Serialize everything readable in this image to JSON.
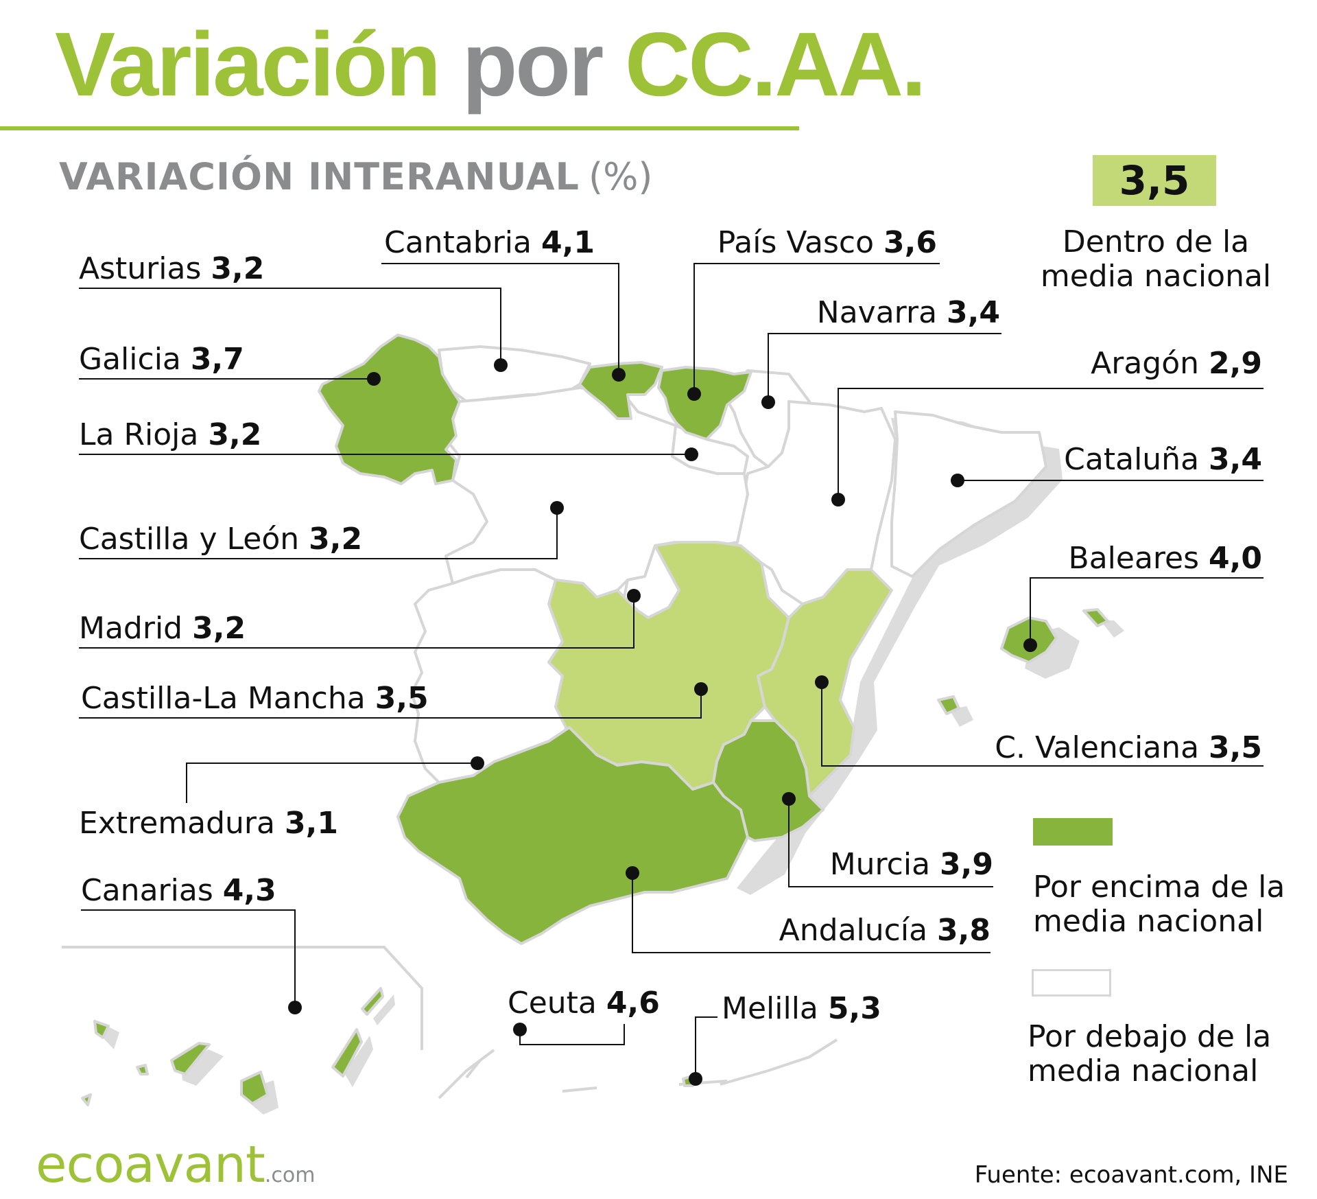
{
  "header": {
    "title_part1": "Variación",
    "title_part2": "por",
    "title_part3": "CC.AA.",
    "subtitle": "VARIACIÓN INTERANUAL",
    "subtitle_unit": "(%)"
  },
  "national_average": {
    "value": "3,5",
    "label_line1": "Dentro de la",
    "label_line2": "media nacional"
  },
  "regions": [
    {
      "id": "asturias",
      "name": "Asturias",
      "value": "3,2",
      "category": "below"
    },
    {
      "id": "cantabria",
      "name": "Cantabria",
      "value": "4,1",
      "category": "above"
    },
    {
      "id": "pais-vasco",
      "name": "País Vasco",
      "value": "3,6",
      "category": "above"
    },
    {
      "id": "navarra",
      "name": "Navarra",
      "value": "3,4",
      "category": "below"
    },
    {
      "id": "galicia",
      "name": "Galicia",
      "value": "3,7",
      "category": "above"
    },
    {
      "id": "aragon",
      "name": "Aragón",
      "value": "2,9",
      "category": "below"
    },
    {
      "id": "la-rioja",
      "name": "La Rioja",
      "value": "3,2",
      "category": "below"
    },
    {
      "id": "cataluna",
      "name": "Cataluña",
      "value": "3,4",
      "category": "below"
    },
    {
      "id": "castilla-leon",
      "name": "Castilla y León",
      "value": "3,2",
      "category": "below"
    },
    {
      "id": "baleares",
      "name": "Baleares",
      "value": "4,0",
      "category": "above"
    },
    {
      "id": "madrid",
      "name": "Madrid",
      "value": "3,2",
      "category": "below"
    },
    {
      "id": "castilla-la-mancha",
      "name": "Castilla-La Mancha",
      "value": "3,5",
      "category": "average"
    },
    {
      "id": "c-valenciana",
      "name": "C. Valenciana",
      "value": "3,5",
      "category": "average"
    },
    {
      "id": "extremadura",
      "name": "Extremadura",
      "value": "3,1",
      "category": "below"
    },
    {
      "id": "murcia",
      "name": "Murcia",
      "value": "3,9",
      "category": "above"
    },
    {
      "id": "canarias",
      "name": "Canarias",
      "value": "4,3",
      "category": "above"
    },
    {
      "id": "andalucia",
      "name": "Andalucía",
      "value": "3,8",
      "category": "above"
    },
    {
      "id": "ceuta",
      "name": "Ceuta",
      "value": "4,6",
      "category": "above"
    },
    {
      "id": "melilla",
      "name": "Melilla",
      "value": "5,3",
      "category": "above"
    }
  ],
  "legend": {
    "above_line1": "Por encima de la",
    "above_line2": "media nacional",
    "below_line1": "Por debajo de la",
    "below_line2": "media nacional"
  },
  "colors": {
    "above": "#86b43c",
    "average": "#c3d977",
    "below": "#ffffff",
    "accent": "#9dc237",
    "muted": "#8a8c8e",
    "border": "#d6d6d6",
    "shadow": "#dcdcdc"
  },
  "footer": {
    "brand": "ecoavant",
    "brand_tld": ".com",
    "source": "Fuente: ecoavant.com, INE"
  }
}
